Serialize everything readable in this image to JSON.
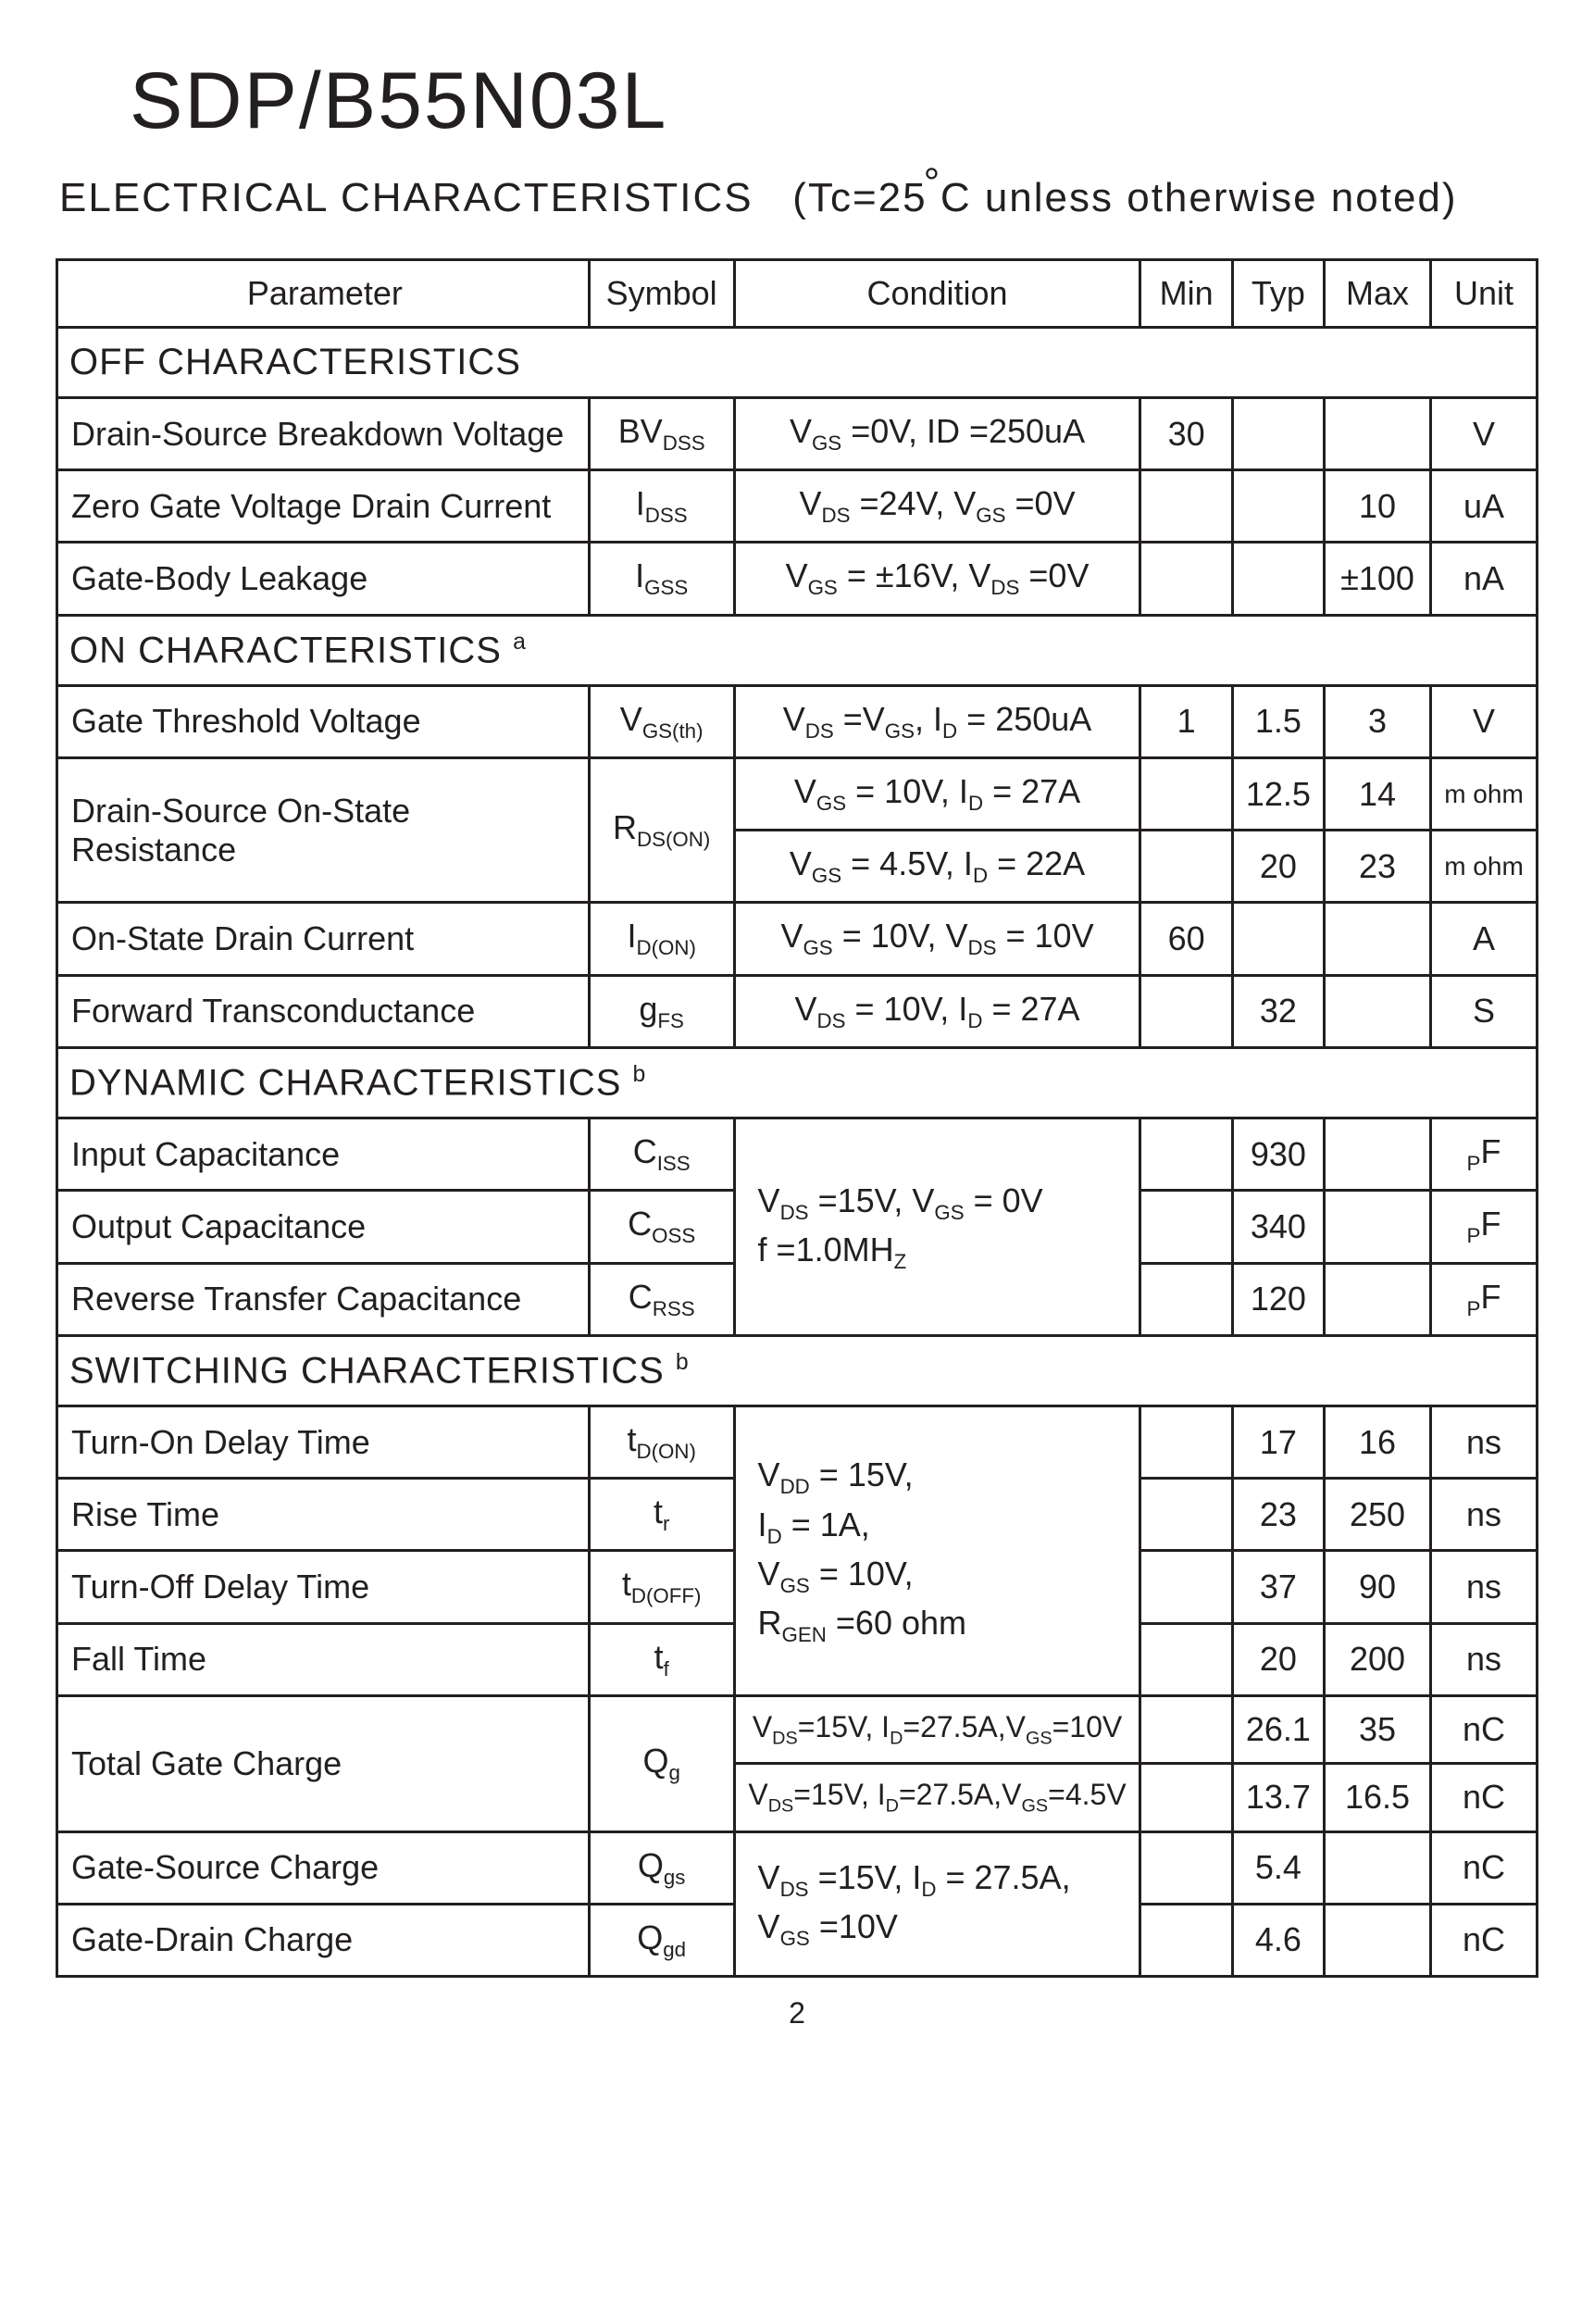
{
  "title": "SDP/B55N03L",
  "subtitle_prefix": "ELECTRICAL  CHARACTERISTICS",
  "subtitle_cond": "(Tc=25",
  "subtitle_unit": "C  unless otherwise noted)",
  "headers": {
    "parameter": "Parameter",
    "symbol": "Symbol",
    "condition": "Condition",
    "min": "Min",
    "typ": "Typ",
    "max": "Max",
    "unit": "Unit"
  },
  "sections": {
    "off": "OFF CHARACTERISTICS",
    "on": "ON CHARACTERISTICS",
    "dyn": "DYNAMIC CHARACTERISTICS",
    "sw": "SWITCHING CHARACTERISTICS"
  },
  "rows": {
    "bvdss": {
      "param": "Drain-Source Breakdown Voltage",
      "min": "30",
      "typ": "",
      "max": "",
      "unit": "V"
    },
    "idss": {
      "param": "Zero Gate Voltage Drain Current",
      "min": "",
      "typ": "",
      "max": "10",
      "unit": "uA"
    },
    "igss": {
      "param": "Gate-Body Leakage",
      "min": "",
      "typ": "",
      "max": "±100",
      "unit": "nA"
    },
    "vgsth": {
      "param": "Gate Threshold Voltage",
      "min": "1",
      "typ": "1.5",
      "max": "3",
      "unit": "V"
    },
    "rdson": {
      "param": "Drain-Source On-State Resistance"
    },
    "rdson1": {
      "min": "",
      "typ": "12.5",
      "max": "14",
      "unit": "m ohm"
    },
    "rdson2": {
      "min": "",
      "typ": "20",
      "max": "23",
      "unit": "m ohm"
    },
    "idon": {
      "param": "On-State Drain Current",
      "min": "60",
      "typ": "",
      "max": "",
      "unit": "A"
    },
    "gfs": {
      "param": "Forward Transconductance",
      "min": "",
      "typ": "32",
      "max": "",
      "unit": "S"
    },
    "ciss": {
      "param": "Input Capacitance",
      "min": "",
      "typ": "930",
      "max": "",
      "unit": "pF"
    },
    "coss": {
      "param": "Output Capacitance",
      "min": "",
      "typ": "340",
      "max": "",
      "unit": "pF"
    },
    "crss": {
      "param": "Reverse Transfer Capacitance",
      "min": "",
      "typ": "120",
      "max": "",
      "unit": "pF"
    },
    "tdon": {
      "param": "Turn-On Delay Time",
      "min": "",
      "typ": "17",
      "max": "16",
      "unit": "ns"
    },
    "tr": {
      "param": "Rise Time",
      "min": "",
      "typ": "23",
      "max": "250",
      "unit": "ns"
    },
    "tdoff": {
      "param": "Turn-Off Delay Time",
      "min": "",
      "typ": "37",
      "max": "90",
      "unit": "ns"
    },
    "tf": {
      "param": "Fall Time",
      "min": "",
      "typ": "20",
      "max": "200",
      "unit": "ns"
    },
    "qg": {
      "param": "Total Gate Charge"
    },
    "qg1": {
      "min": "",
      "typ": "26.1",
      "max": "35",
      "unit": "nC"
    },
    "qg2": {
      "min": "",
      "typ": "13.7",
      "max": "16.5",
      "unit": "nC"
    },
    "qgs": {
      "param": "Gate-Source Charge",
      "min": "",
      "typ": "5.4",
      "max": "",
      "unit": "nC"
    },
    "qgd": {
      "param": "Gate-Drain Charge",
      "min": "",
      "typ": "4.6",
      "max": "",
      "unit": "nC"
    }
  },
  "page": "2"
}
